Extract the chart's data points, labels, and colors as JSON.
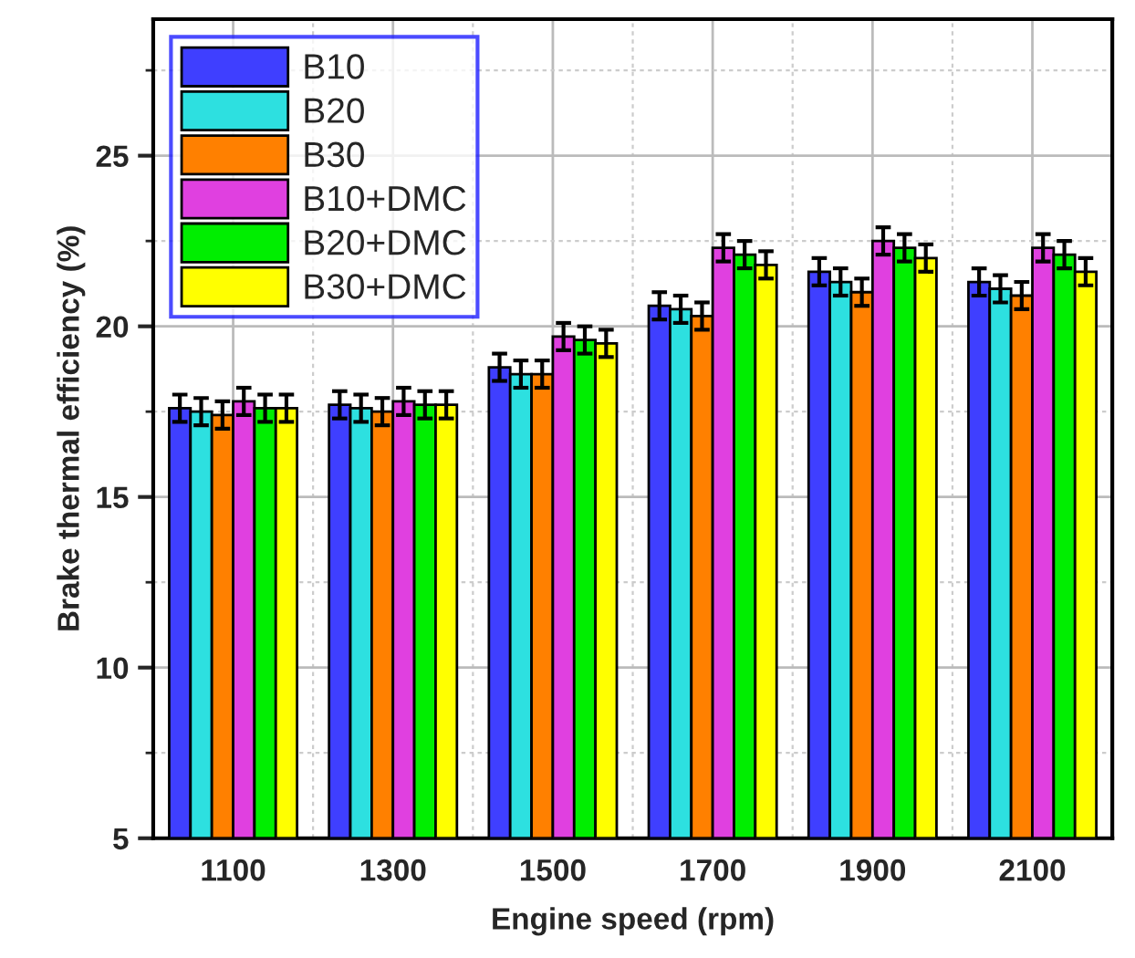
{
  "chart_data": {
    "type": "bar",
    "xlabel": "Engine speed (rpm)",
    "ylabel": "Brake thermal efficiency (%)",
    "categories": [
      "1100",
      "1300",
      "1500",
      "1700",
      "1900",
      "2100"
    ],
    "series": [
      {
        "name": "B10",
        "color": "#3f3fff",
        "values": [
          17.6,
          17.7,
          18.8,
          20.6,
          21.6,
          21.3
        ],
        "errors": [
          0.4,
          0.4,
          0.4,
          0.4,
          0.4,
          0.4
        ]
      },
      {
        "name": "B20",
        "color": "#2de0e0",
        "values": [
          17.5,
          17.6,
          18.6,
          20.5,
          21.3,
          21.1
        ],
        "errors": [
          0.4,
          0.4,
          0.4,
          0.4,
          0.4,
          0.4
        ]
      },
      {
        "name": "B30",
        "color": "#ff8000",
        "values": [
          17.4,
          17.5,
          18.6,
          20.3,
          21.0,
          20.9
        ],
        "errors": [
          0.4,
          0.4,
          0.4,
          0.4,
          0.4,
          0.4
        ]
      },
      {
        "name": "B10+DMC",
        "color": "#e040e0",
        "values": [
          17.8,
          17.8,
          19.7,
          22.3,
          22.5,
          22.3
        ],
        "errors": [
          0.4,
          0.4,
          0.4,
          0.4,
          0.4,
          0.4
        ]
      },
      {
        "name": "B20+DMC",
        "color": "#00ee00",
        "values": [
          17.6,
          17.7,
          19.6,
          22.1,
          22.3,
          22.1
        ],
        "errors": [
          0.4,
          0.4,
          0.4,
          0.4,
          0.4,
          0.4
        ]
      },
      {
        "name": "B30+DMC",
        "color": "#ffff00",
        "values": [
          17.6,
          17.7,
          19.5,
          21.8,
          22.0,
          21.6
        ],
        "errors": [
          0.4,
          0.4,
          0.4,
          0.4,
          0.4,
          0.4
        ]
      }
    ],
    "ylim": [
      5,
      29
    ],
    "yticks": [
      5,
      10,
      15,
      20,
      25
    ],
    "grid": true,
    "legend": "top left"
  }
}
